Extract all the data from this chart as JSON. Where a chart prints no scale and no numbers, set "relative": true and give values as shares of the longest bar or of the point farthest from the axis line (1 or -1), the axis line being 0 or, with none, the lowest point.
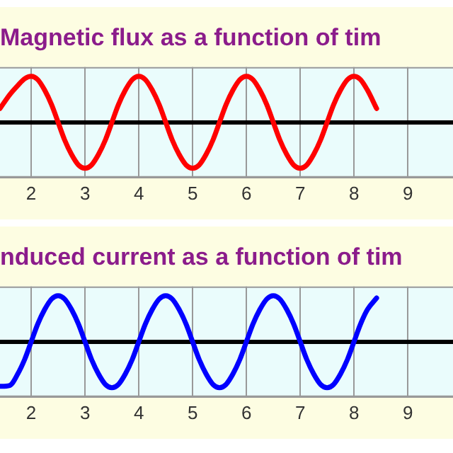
{
  "chart_data": [
    {
      "type": "line",
      "title": "Magnetic flux as a function of tim",
      "relative": true,
      "x": [
        1.42,
        1.6,
        1.75,
        1.88,
        2,
        2.12,
        2.25,
        2.38,
        2.5,
        2.62,
        2.75,
        2.88,
        3,
        3.12,
        3.25,
        3.38,
        3.5,
        3.62,
        3.75,
        3.88,
        4,
        4.12,
        4.25,
        4.38,
        4.5,
        4.62,
        4.75,
        4.88,
        5,
        5.12,
        5.25,
        5.38,
        5.5,
        5.62,
        5.75,
        5.88,
        6,
        6.12,
        6.25,
        6.38,
        6.5,
        6.62,
        6.75,
        6.88,
        7,
        7.12,
        7.25,
        7.38,
        7.5,
        7.62,
        7.75,
        7.88,
        8,
        8.12,
        8.25,
        8.42
      ],
      "xlim": [
        1.42,
        9.84
      ],
      "xticks": [
        2,
        3,
        4,
        5,
        6,
        7,
        8,
        9
      ],
      "grid": "x",
      "tick_labels": "x",
      "marker": "none",
      "line_style": "solid",
      "series": [
        {
          "color": "#ff0000",
          "values": [
            0.3,
            0.6,
            0.8,
            0.95,
            1,
            0.93,
            0.7,
            0.38,
            0,
            -0.38,
            -0.7,
            -0.93,
            -1,
            -0.93,
            -0.7,
            -0.38,
            0,
            0.38,
            0.7,
            0.93,
            1,
            0.93,
            0.7,
            0.38,
            0,
            -0.38,
            -0.7,
            -0.93,
            -1,
            -0.93,
            -0.7,
            -0.38,
            0,
            0.38,
            0.7,
            0.93,
            1,
            0.93,
            0.7,
            0.38,
            0,
            -0.38,
            -0.7,
            -0.93,
            -1,
            -0.93,
            -0.7,
            -0.38,
            0,
            0.38,
            0.7,
            0.93,
            1,
            0.93,
            0.7,
            0.3
          ]
        }
      ]
    },
    {
      "type": "line",
      "title": "nduced current as a function of tim",
      "relative": true,
      "x": [
        1.42,
        1.6,
        1.75,
        1.88,
        2,
        2.12,
        2.25,
        2.38,
        2.5,
        2.62,
        2.75,
        2.88,
        3,
        3.12,
        3.25,
        3.38,
        3.5,
        3.62,
        3.75,
        3.88,
        4,
        4.12,
        4.25,
        4.38,
        4.5,
        4.62,
        4.75,
        4.88,
        5,
        5.12,
        5.25,
        5.38,
        5.5,
        5.62,
        5.75,
        5.88,
        6,
        6.12,
        6.25,
        6.38,
        6.5,
        6.62,
        6.75,
        6.88,
        7,
        7.12,
        7.25,
        7.38,
        7.5,
        7.62,
        7.75,
        7.88,
        8,
        8.12,
        8.25,
        8.42
      ],
      "xlim": [
        1.42,
        9.84
      ],
      "xticks": [
        2,
        3,
        4,
        5,
        6,
        7,
        8,
        9
      ],
      "grid": "x",
      "tick_labels": "x",
      "marker": "none",
      "line_style": "solid",
      "series": [
        {
          "color": "#0000ff",
          "values": [
            -0.97,
            -0.95,
            -0.7,
            -0.38,
            0,
            0.38,
            0.7,
            0.93,
            1,
            0.93,
            0.7,
            0.38,
            0,
            -0.38,
            -0.7,
            -0.93,
            -1,
            -0.93,
            -0.7,
            -0.38,
            0,
            0.38,
            0.7,
            0.93,
            1,
            0.93,
            0.7,
            0.38,
            0,
            -0.38,
            -0.7,
            -0.93,
            -1,
            -0.93,
            -0.7,
            -0.38,
            0,
            0.38,
            0.7,
            0.93,
            1,
            0.93,
            0.7,
            0.38,
            0,
            -0.38,
            -0.7,
            -0.93,
            -1,
            -0.93,
            -0.7,
            -0.38,
            0,
            0.38,
            0.7,
            0.95
          ]
        }
      ]
    }
  ]
}
